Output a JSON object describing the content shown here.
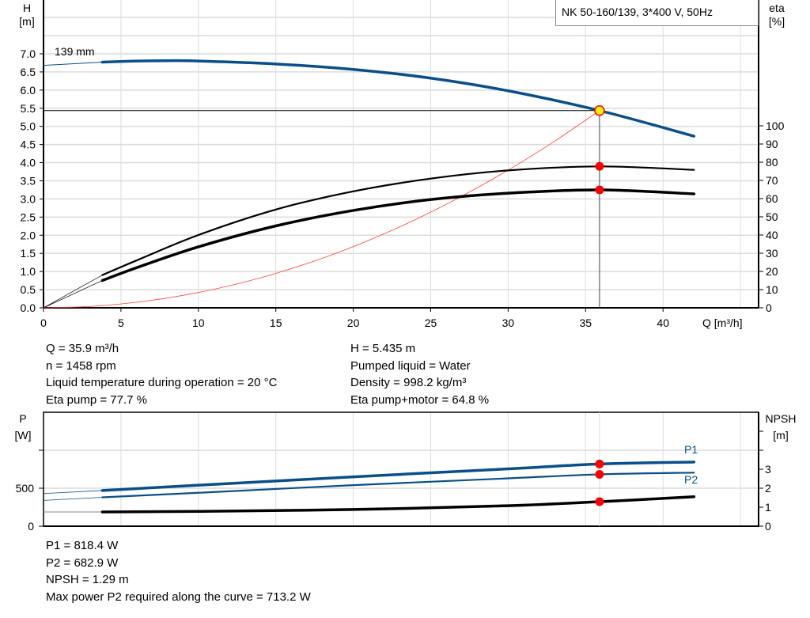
{
  "colors": {
    "head": "#0b4f8a",
    "eta": "#000000",
    "system": "#ff4040",
    "point": "#ff0000",
    "duty_point_fill": "#ffee00",
    "grid": "#dcdcdc"
  },
  "legend_box": "NK 50-160/139, 3*400 V, 50Hz",
  "chart_data": [
    {
      "type": "line",
      "title": "NK 50-160/139, 3*400 V, 50Hz",
      "xlabel": "Q [m³/h]",
      "ylabel_left": [
        "H",
        "[m]"
      ],
      "ylabel_right": [
        "eta",
        "[%]"
      ],
      "xlim": [
        0,
        46
      ],
      "ylim_left": [
        0,
        8.5
      ],
      "ylim_right": [
        0,
        100
      ],
      "grid": true,
      "x_ticks": [
        "0",
        "5",
        "10",
        "15",
        "20",
        "25",
        "30",
        "35",
        "40"
      ],
      "y_ticks_left": [
        "0.0",
        "0.5",
        "1.0",
        "1.5",
        "2.0",
        "2.5",
        "3.0",
        "3.5",
        "4.0",
        "4.5",
        "5.0",
        "5.5",
        "6.0",
        "6.5",
        "7.0"
      ],
      "y_ticks_right": [
        "0",
        "10",
        "20",
        "30",
        "40",
        "50",
        "60",
        "70",
        "80",
        "90",
        "100"
      ],
      "annotation": "139 mm",
      "duty_point": {
        "Q": 35.9,
        "H": 5.435,
        "eta_pump": 77.7,
        "eta_pump_motor": 64.8
      },
      "series": [
        {
          "key": "H",
          "axis": "left",
          "x": [
            3.8,
            6,
            8,
            10,
            15,
            20,
            25,
            30,
            35.9,
            42
          ],
          "y": [
            6.77,
            6.8,
            6.81,
            6.8,
            6.72,
            6.57,
            6.33,
            5.98,
            5.435,
            4.73
          ],
          "extension_from_zero": 6.68
        },
        {
          "key": "eta_pump",
          "axis": "right",
          "x": [
            3.8,
            6,
            10,
            15,
            20,
            25,
            30,
            35.9,
            42
          ],
          "y": [
            18,
            26,
            40,
            54,
            64,
            71,
            75.5,
            77.7,
            75.8
          ]
        },
        {
          "key": "eta_pump_motor",
          "axis": "right",
          "x": [
            3.8,
            6,
            10,
            15,
            20,
            25,
            30,
            35.9,
            42
          ],
          "y": [
            15,
            22,
            33.5,
            45,
            53.5,
            59.5,
            63,
            64.8,
            62.6
          ]
        },
        {
          "key": "system_curve",
          "axis": "left",
          "x": [
            0,
            3,
            6,
            9,
            12,
            15,
            18,
            21,
            24,
            27,
            30,
            33,
            35.9
          ],
          "y": [
            0,
            0.038,
            0.152,
            0.342,
            0.607,
            0.949,
            1.366,
            1.86,
            2.429,
            3.074,
            3.795,
            4.592,
            5.435
          ]
        }
      ]
    },
    {
      "type": "line",
      "xlim": [
        0,
        46
      ],
      "ylabel_left": [
        "P",
        "[W]"
      ],
      "ylabel_right": [
        "NPSH",
        "[m]"
      ],
      "ylim_left": [
        0,
        1500
      ],
      "ylim_right": [
        0,
        6
      ],
      "grid": true,
      "y_ticks_left": [
        "0",
        "500"
      ],
      "y_ticks_right": [
        "0",
        "1",
        "2",
        "3"
      ],
      "series": [
        {
          "name": "P1",
          "axis": "left",
          "x": [
            3.8,
            10,
            20,
            30,
            35.9,
            42
          ],
          "y": [
            470,
            540,
            650,
            755,
            818.4,
            845
          ],
          "extension_from_zero": 430
        },
        {
          "name": "P2",
          "axis": "left",
          "x": [
            3.8,
            10,
            20,
            30,
            35.9,
            42
          ],
          "y": [
            380,
            440,
            540,
            630,
            682.9,
            705
          ],
          "extension_from_zero": 340
        },
        {
          "key": "NPSH",
          "axis": "right",
          "x": [
            3.8,
            10,
            20,
            30,
            35.9,
            42
          ],
          "y": [
            0.75,
            0.78,
            0.88,
            1.08,
            1.29,
            1.55
          ],
          "extension_from_zero": 0.75
        }
      ]
    }
  ],
  "info_top_left": [
    "Q = 35.9 m³/h",
    "n = 1458 rpm",
    "Liquid temperature during operation = 20 °C",
    "Eta pump = 77.7 %"
  ],
  "info_top_right": [
    "H = 5.435 m",
    "Pumped liquid = Water",
    "Density = 998.2 kg/m³",
    "Eta pump+motor = 64.8 %"
  ],
  "info_bottom": [
    "P1 = 818.4 W",
    "P2 = 682.9 W",
    "NPSH = 1.29 m",
    "Max power P2 required along the curve = 713.2 W"
  ]
}
